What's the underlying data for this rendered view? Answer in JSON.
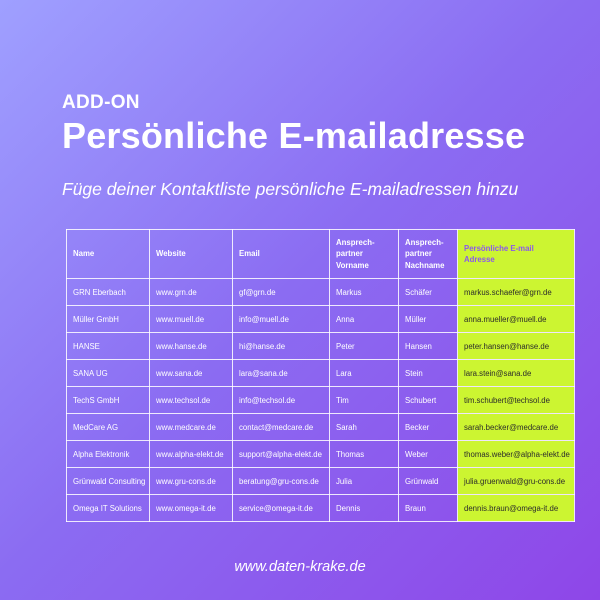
{
  "header": {
    "eyebrow": "ADD-ON",
    "title": "Persönliche E-mailadresse",
    "subtitle": "Füge deiner Kontaktliste persönliche E-mailadressen hinzu"
  },
  "table": {
    "columns": [
      "Name",
      "Website",
      "Email",
      "Ansprech-\npartner\nVorname",
      "Ansprech-\npartner\nNachname",
      "Persönliche E-mail\nAdresse"
    ],
    "rows": [
      [
        "GRN Eberbach",
        "www.grn.de",
        "gf@grn.de",
        "Markus",
        "Schäfer",
        "markus.schaefer@grn.de"
      ],
      [
        "Müller GmbH",
        "www.muell.de",
        "info@muell.de",
        "Anna",
        "Müller",
        "anna.mueller@muell.de"
      ],
      [
        "HANSE",
        "www.hanse.de",
        "hi@hanse.de",
        "Peter",
        "Hansen",
        "peter.hansen@hanse.de"
      ],
      [
        "SANA UG",
        "www.sana.de",
        "lara@sana.de",
        "Lara",
        "Stein",
        "lara.stein@sana.de"
      ],
      [
        "TechS GmbH",
        "www.techsol.de",
        "info@techsol.de",
        "Tim",
        "Schubert",
        "tim.schubert@techsol.de"
      ],
      [
        "MedCare AG",
        "www.medcare.de",
        "contact@medcare.de",
        "Sarah",
        "Becker",
        "sarah.becker@medcare.de"
      ],
      [
        "Alpha Elektronik",
        "www.alpha-elekt.de",
        "support@alpha-elekt.de",
        "Thomas",
        "Weber",
        "thomas.weber@alpha-elekt.de"
      ],
      [
        "Grünwald Consulting",
        "www.gru-cons.de",
        "beratung@gru-cons.de",
        "Julia",
        "Grünwald",
        "julia.gruenwald@gru-cons.de"
      ],
      [
        "Omega IT Solutions",
        "www.omega-it.de",
        "service@omega-it.de",
        "Dennis",
        "Braun",
        "dennis.braun@omega-it.de"
      ]
    ],
    "highlight_column_color": "#ccf531",
    "highlight_header_text_color": "#8c58ec"
  },
  "footer": {
    "url": "www.daten-krake.de"
  },
  "colors": {
    "background_start": "#9fa0ff",
    "background_end": "#8e46e8",
    "text": "#ffffff"
  }
}
